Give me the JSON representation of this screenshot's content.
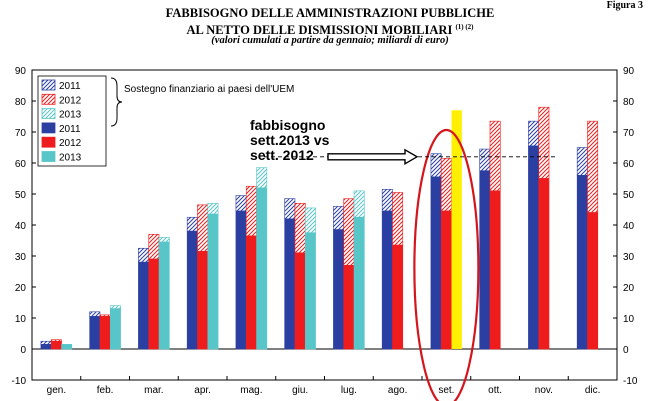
{
  "figure_label": "Figura 3",
  "title_line1": "FABBISOGNO DELLE AMMINISTRAZIONI PUBBLICHE",
  "title_line2": "AL NETTO DELLE DISMISSIONI MOBILIARI",
  "title_notes": "(1) (2)",
  "subtitle": "(valori cumulati a partire da gennaio; miliardi di euro)",
  "legend_note": "Sostegno finanziario ai paesi dell'UEM",
  "annotation": {
    "line1": "fabbisogno",
    "line2": "sett.2013 vs",
    "line3": "sett. 2012"
  },
  "colors": {
    "2011": "#2b3fa3",
    "2012": "#ee1c1c",
    "2013": "#58c6c9",
    "hatch_2011": "#8fa5dc",
    "hatch_2012": "#f29c9c",
    "hatch_2013": "#b6e6e8",
    "highlight_bar": "#ffef00",
    "ellipse": "#d4161c"
  },
  "chart_data": {
    "type": "bar",
    "categories": [
      "gen.",
      "feb.",
      "mar.",
      "apr.",
      "mag.",
      "giu.",
      "lug.",
      "ago.",
      "set.",
      "ott.",
      "nov.",
      "dic."
    ],
    "ylim": [
      -10,
      90
    ],
    "yticks": [
      -10,
      0,
      10,
      20,
      30,
      40,
      50,
      60,
      70,
      80,
      90
    ],
    "grid": false,
    "legend_position": "top-left",
    "series": [
      {
        "name": "2011",
        "values": [
          1.5,
          10.5,
          28,
          38,
          44.5,
          42,
          38.5,
          44.5,
          55.5,
          57.5,
          65.5,
          56
        ]
      },
      {
        "name": "2012",
        "values": [
          2.5,
          10.5,
          29,
          31.5,
          36.5,
          31,
          27,
          33.5,
          44.5,
          51,
          55,
          44
        ]
      },
      {
        "name": "2013",
        "values": [
          1.5,
          13,
          34.5,
          43.5,
          52,
          37.5,
          42.5,
          null,
          null,
          null,
          null,
          null
        ]
      }
    ],
    "support_series": [
      {
        "name": "2011",
        "values": [
          2.5,
          12,
          32.5,
          42.5,
          49.5,
          48.5,
          46,
          51.5,
          63,
          64.5,
          73.5,
          65
        ]
      },
      {
        "name": "2012",
        "values": [
          3,
          11,
          37,
          46.5,
          52.5,
          47,
          48.5,
          50.5,
          61.5,
          73.5,
          78,
          73.5
        ]
      },
      {
        "name": "2013",
        "values": [
          1.5,
          14,
          36,
          47,
          58.5,
          45.5,
          51,
          null,
          null,
          null,
          null,
          null
        ]
      }
    ],
    "highlight": {
      "category": "set.",
      "value": 77
    }
  }
}
